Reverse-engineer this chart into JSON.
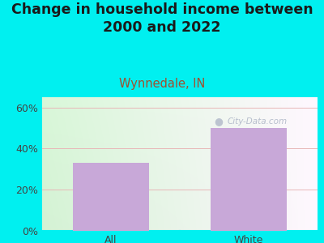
{
  "categories": [
    "All",
    "White"
  ],
  "values": [
    33.0,
    50.0
  ],
  "bar_color": "#c8a8d8",
  "title": "Change in household income between\n2000 and 2022",
  "subtitle": "Wynnedale, IN",
  "title_fontsize": 12.5,
  "subtitle_fontsize": 10.5,
  "title_color": "#1a1a1a",
  "subtitle_color": "#a05030",
  "ylim": [
    0,
    65
  ],
  "yticks": [
    0,
    20,
    40,
    60
  ],
  "ytick_labels": [
    "0%",
    "20%",
    "40%",
    "60%"
  ],
  "bg_color": "#00f0f0",
  "watermark": "City-Data.com",
  "watermark_color": "#b0b8c8",
  "grid_color": "#e8b8b8",
  "tick_label_fontsize": 9,
  "bar_width": 0.55
}
